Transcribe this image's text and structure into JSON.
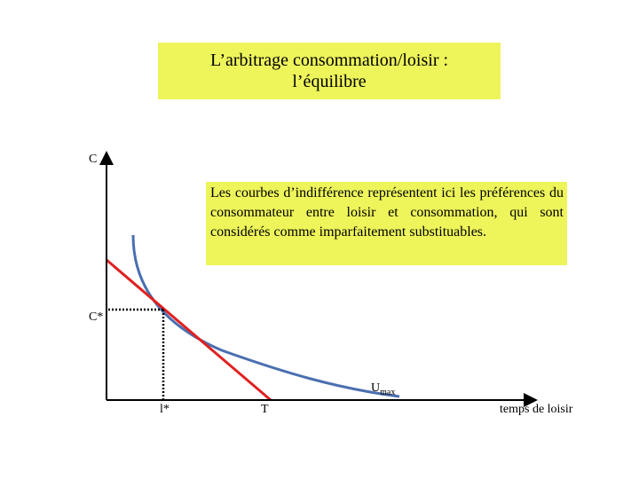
{
  "title": {
    "line1": "L’arbitrage consommation/loisir :",
    "line2": "l’équilibre"
  },
  "note": "Les courbes d’indifférence représentent ici les préférences du consommateur entre loisir et consommation, qui sont considérés comme imparfaitement substituables.",
  "axes": {
    "y_label": "C",
    "x_label": "temps de loisir"
  },
  "labels": {
    "c_star": "C*",
    "l_star": "l*",
    "t": "T",
    "u_main": "U",
    "u_sub": "max"
  },
  "colors": {
    "budget_line": "#e02020",
    "indifference_curve": "#4a6fb0",
    "highlight": "#eef55a"
  }
}
